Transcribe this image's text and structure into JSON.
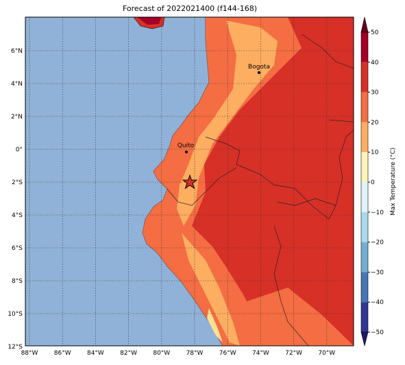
{
  "title": "Forecast of 2022021400 (f144-168)",
  "lon_labels": [
    "88°W",
    "86°W",
    "84°W",
    "82°W",
    "80°W",
    "78°W",
    "76°W",
    "74°W",
    "72°W",
    "70°W"
  ],
  "lat_labels": [
    "6°N",
    "4°N",
    "2°N",
    "0°",
    "2°S",
    "4°S",
    "6°S",
    "8°S",
    "10°S",
    "12°S"
  ],
  "cities": [
    {
      "name": "Quito"
    },
    {
      "name": "Bogota"
    }
  ],
  "colorbar": {
    "label": "Max Temperature (°C)",
    "ticks": [
      "50",
      "40",
      "30",
      "20",
      "10",
      "0",
      "−10",
      "−20",
      "−30",
      "−40",
      "−50"
    ]
  }
}
